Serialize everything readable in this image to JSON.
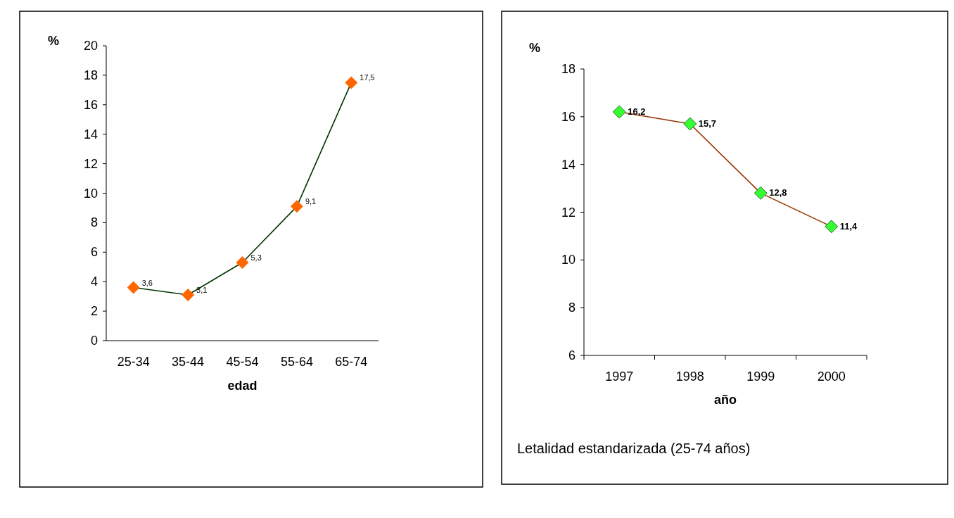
{
  "chart_data": [
    {
      "type": "line",
      "categories": [
        "25-34",
        "35-44",
        "45-54",
        "55-64",
        "65-74"
      ],
      "series": [
        {
          "color": "#003300",
          "colors": [
            "#ff6600",
            "#ff6600",
            "#ff6600",
            "#ff6600",
            "#ff6600"
          ],
          "values": [
            3.6,
            3.1,
            5.3,
            9.1,
            17.5
          ],
          "value_labels": [
            "3,6",
            "3,1",
            "5,3",
            "9,1",
            "17,5"
          ]
        }
      ],
      "ylim": [
        0,
        20
      ],
      "yticks": [
        0,
        2,
        4,
        6,
        8,
        10,
        12,
        14,
        16,
        18,
        20
      ],
      "ylabel": "%",
      "xlabel": "edad",
      "marker": "diamond",
      "grid": false
    },
    {
      "type": "line",
      "categories": [
        "1997",
        "1998",
        "1999",
        "2000"
      ],
      "series": [
        {
          "color": "#993300",
          "colors": [
            "#33ff33",
            "#33ff33",
            "#33ff33",
            "#33ff33"
          ],
          "values": [
            16.2,
            15.7,
            12.8,
            11.4
          ],
          "value_labels": [
            "16,2",
            "15,7",
            "12,8",
            "11,4"
          ]
        }
      ],
      "ylim": [
        6,
        18
      ],
      "yticks": [
        6,
        8,
        10,
        12,
        14,
        16,
        18
      ],
      "ylabel": "%",
      "xlabel": "año",
      "marker": "diamond",
      "grid": false,
      "annotations": [
        "Letalidad estandarizada (25-74 años)"
      ]
    }
  ]
}
